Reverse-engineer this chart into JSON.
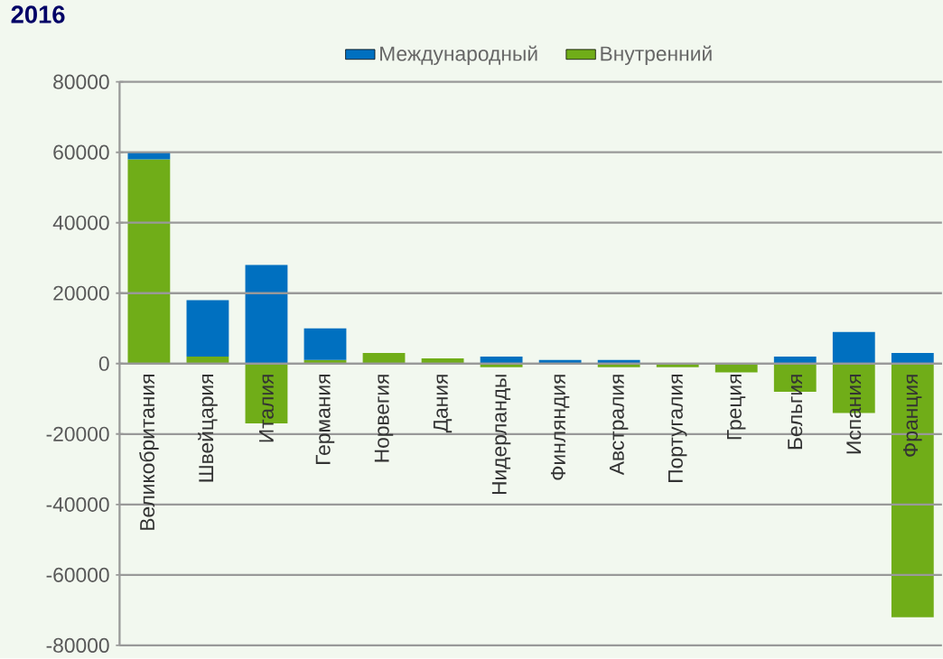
{
  "chart_data": {
    "type": "bar",
    "title": "2016",
    "stacked": true,
    "categories": [
      "Великобритания",
      "Швейцария",
      "Италия",
      "Германия",
      "Норвегия",
      "Дания",
      "Нидерланды",
      "Финляндия",
      "Австралия",
      "Португалия",
      "Греция",
      "Бельгия",
      "Испания",
      "Франция"
    ],
    "series": [
      {
        "name": "Внутренний",
        "color": "#70ad18",
        "values": [
          58000,
          2000,
          -17000,
          1000,
          3000,
          1500,
          -1000,
          null,
          -1000,
          -1000,
          -2500,
          -8000,
          -14000,
          -72000
        ]
      },
      {
        "name": "Международный",
        "color": "#0070c0",
        "values": [
          2000,
          16000,
          28000,
          9000,
          null,
          null,
          2000,
          1000,
          1000,
          null,
          null,
          2000,
          9000,
          3000
        ]
      }
    ],
    "ylim": [
      -80000,
      80000
    ],
    "yticks": [
      -80000,
      -60000,
      -40000,
      -20000,
      0,
      20000,
      40000,
      60000,
      80000
    ],
    "grid": "y",
    "legend": "top"
  }
}
